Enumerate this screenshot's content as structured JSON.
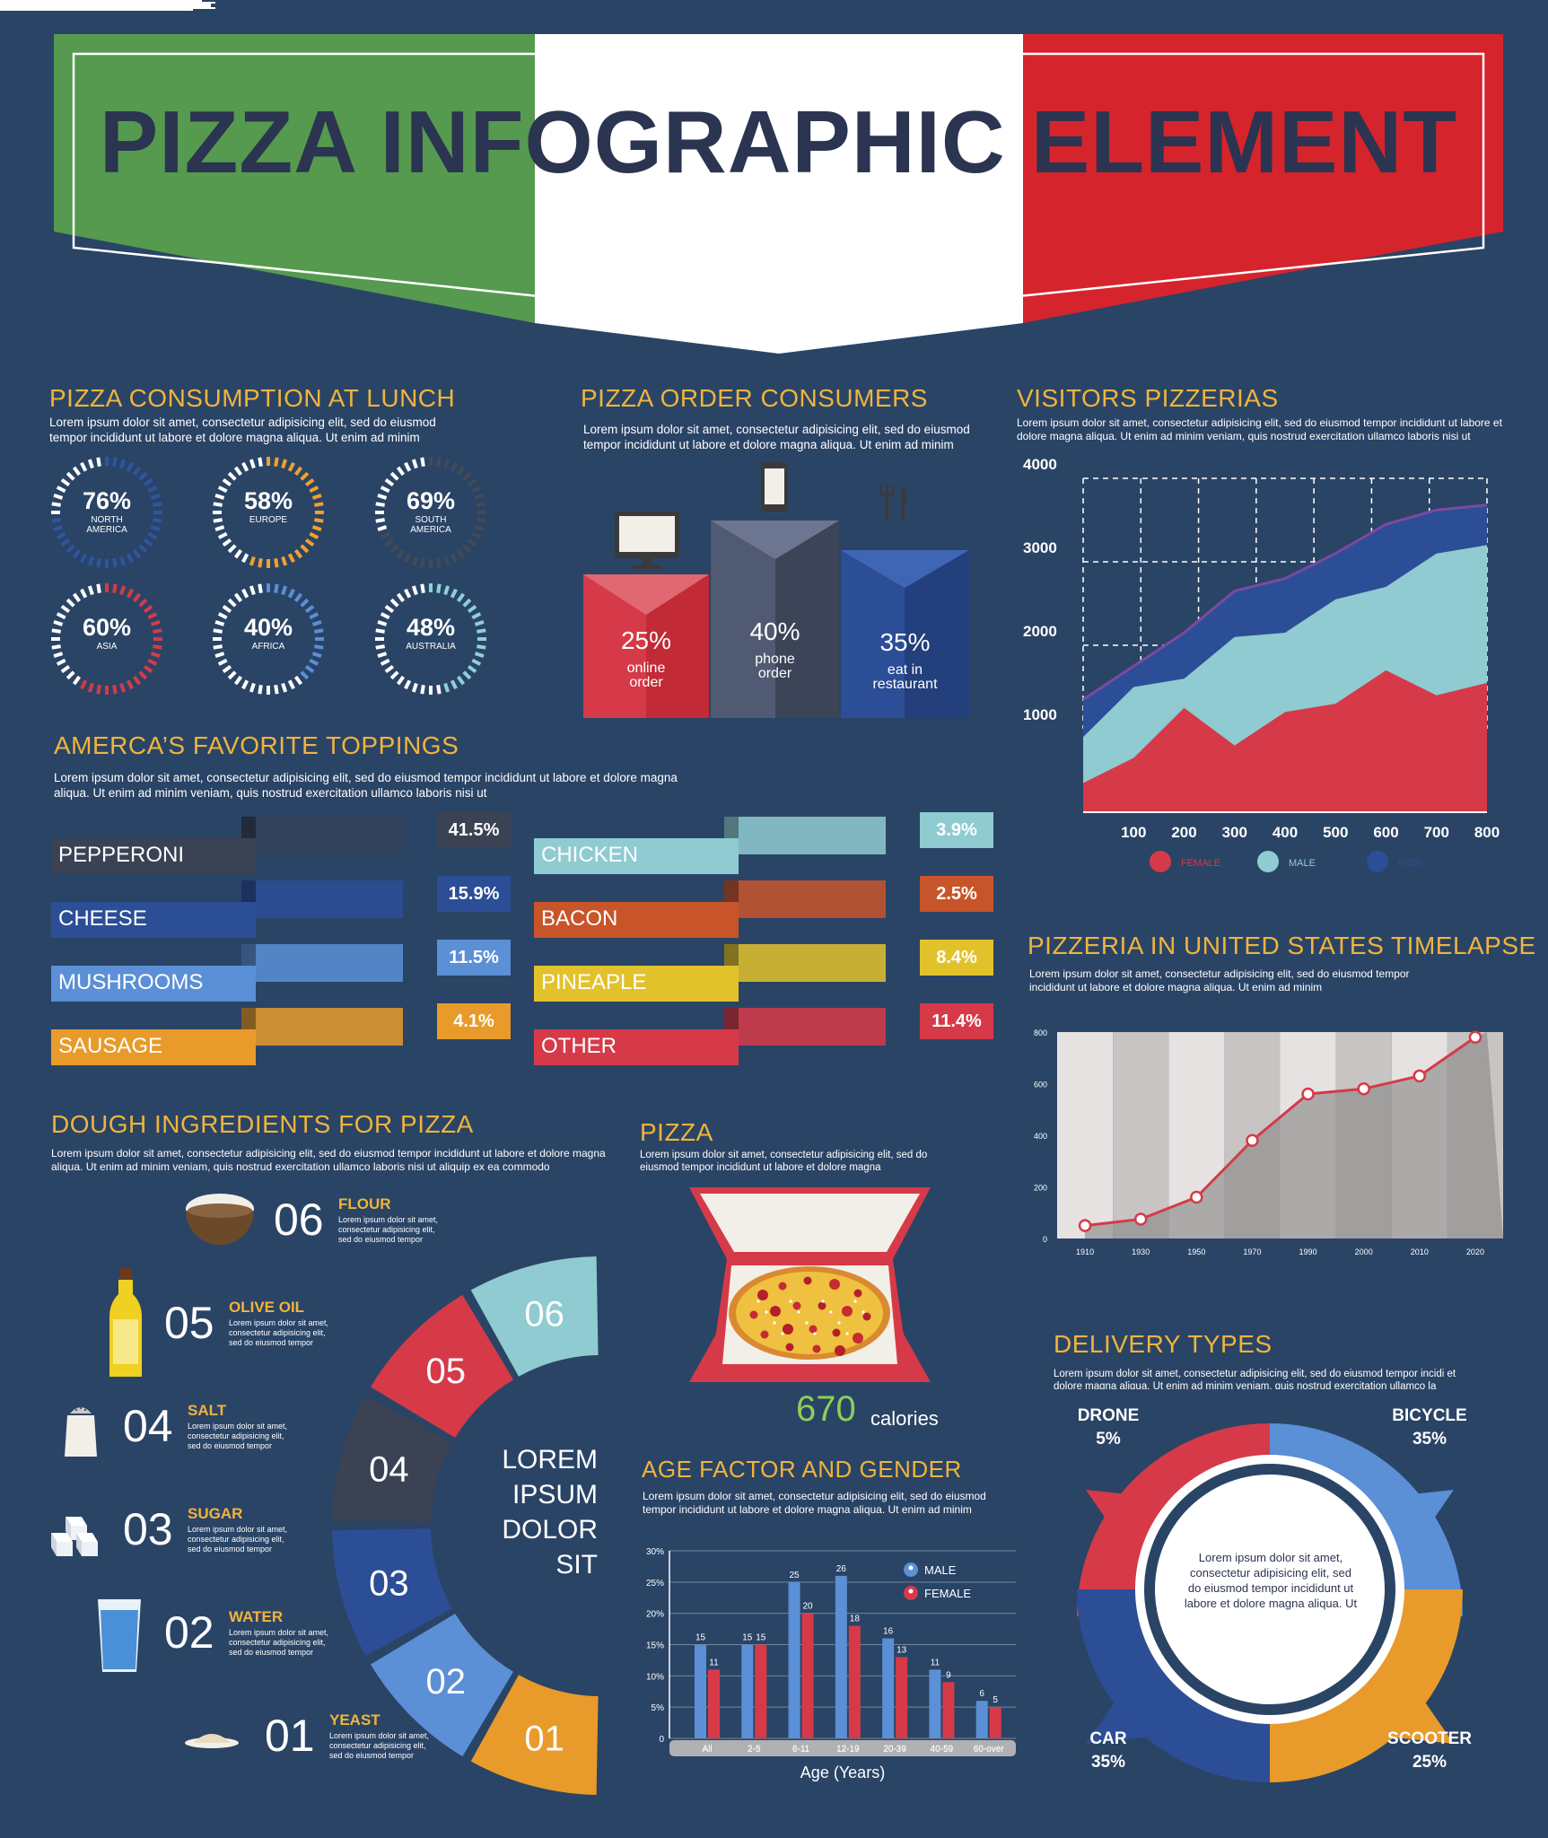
{
  "title": "PIZZA INFOGRAPHIC ELEMENT",
  "colors": {
    "background": "#2a4466",
    "green": "#559a4e",
    "white": "#ffffff",
    "red": "#d5242c",
    "accent": "#f0b43c",
    "title_text": "#2b3450"
  },
  "consumption": {
    "heading": "PIZZA CONSUMPTION AT LUNCH",
    "text": "Lorem ipsum dolor sit amet, consectetur adipisicing elit, sed do eiusmod tempor incididunt ut labore et dolore magna aliqua. Ut enim ad minim",
    "items": [
      {
        "pct": "76%",
        "region": "NORTH AMERICA",
        "color": "#2e55a0",
        "value": 76
      },
      {
        "pct": "58%",
        "region": "EUROPE",
        "color": "#f0a030",
        "value": 58
      },
      {
        "pct": "69%",
        "region": "SOUTH AMERICA",
        "color": "#444a55",
        "value": 69
      },
      {
        "pct": "60%",
        "region": "ASIA",
        "color": "#d63a48",
        "value": 60
      },
      {
        "pct": "40%",
        "region": "AFRICA",
        "color": "#5a8fd8",
        "value": 40
      },
      {
        "pct": "48%",
        "region": "AUSTRALIA",
        "color": "#8fd0d6",
        "value": 48
      }
    ]
  },
  "order": {
    "heading": "PIZZA ORDER CONSUMERS",
    "text": "Lorem ipsum dolor sit amet, consectetur adipisicing elit, sed do eiusmod tempor incididunt ut labore et dolore magna aliqua. Ut enim ad minim",
    "items": [
      {
        "pct": "25%",
        "label1": "online",
        "label2": "order",
        "icon": "monitor-icon",
        "value": 25
      },
      {
        "pct": "40%",
        "label1": "phone",
        "label2": "order",
        "icon": "phone-icon",
        "value": 40
      },
      {
        "pct": "35%",
        "label1": "eat in",
        "label2": "restaurant",
        "icon": "fork-knife-icon",
        "value": 35
      }
    ]
  },
  "visitors": {
    "heading": "VISITORS PIZZERIAS",
    "text": "Lorem ipsum dolor sit amet, consectetur adipisicing elit, sed do eiusmod tempor incididunt ut labore et dolore magna aliqua. Ut enim ad minim veniam, quis nostrud exercitation ullamco laboris nisi ut",
    "legend": [
      "FEMALE",
      "MALE",
      "KIDS"
    ]
  },
  "toppings": {
    "heading": "AMERCA’S FAVORITE TOPPINGS",
    "text": "Lorem ipsum dolor sit amet, consectetur adipisicing elit, sed do eiusmod tempor incididunt ut labore et dolore magna aliqua. Ut enim ad minim veniam, quis nostrud exercitation ullamco laboris nisi ut",
    "left": [
      {
        "name": "PEPPERONI",
        "pct": "41.5%",
        "color": "#3a4254",
        "value": 41.5
      },
      {
        "name": "CHEESE",
        "pct": "15.9%",
        "color": "#2c4e96",
        "value": 15.9
      },
      {
        "name": "MUSHROOMS",
        "pct": "11.5%",
        "color": "#5b8fd6",
        "value": 11.5
      },
      {
        "name": "SAUSAGE",
        "pct": "4.1%",
        "color": "#e89b2a",
        "value": 4.1
      }
    ],
    "right": [
      {
        "name": "CHICKEN",
        "pct": "3.9%",
        "color": "#8fcbd0",
        "value": 3.9
      },
      {
        "name": "BACON",
        "pct": "2.5%",
        "color": "#c8552a",
        "value": 2.5
      },
      {
        "name": "PINEAPLE",
        "pct": "8.4%",
        "color": "#e2c22a",
        "value": 8.4
      },
      {
        "name": "OTHER",
        "pct": "11.4%",
        "color": "#d63a48",
        "value": 11.4
      }
    ]
  },
  "timelapse": {
    "heading": "PIZZERIA IN UNITED STATES TIMELAPSE",
    "text": "Lorem ipsum dolor sit amet, consectetur adipisicing elit, sed do eiusmod tempor incididunt ut labore et dolore magna aliqua. Ut enim ad minim"
  },
  "dough": {
    "heading": "DOUGH INGREDIENTS FOR PIZZA",
    "text": "Lorem ipsum dolor sit amet, consectetur adipisicing elit, sed do eiusmod tempor incididunt ut labore et dolore magna aliqua. Ut enim ad minim veniam, quis nostrud exercitation ullamco laboris nisi ut aliquip ex ea commodo",
    "center_text": [
      "LOREM",
      "IPSUM",
      "DOLOR",
      "SIT"
    ],
    "steps": [
      {
        "num": "06",
        "title": "FLOUR",
        "desc": "Lorem ipsum dolor sit amet, consectetur adipisicing elit, sed do eiusmod tempor"
      },
      {
        "num": "05",
        "title": "OLIVE OIL",
        "desc": "Lorem ipsum dolor sit amet, consectetur adipisicing elit, sed do eiusmod tempor"
      },
      {
        "num": "04",
        "title": "SALT",
        "desc": "Lorem ipsum dolor sit amet, consectetur adipisicing elit, sed do eiusmod tempor"
      },
      {
        "num": "03",
        "title": "SUGAR",
        "desc": "Lorem ipsum dolor sit amet, consectetur adipisicing elit, sed do eiusmod tempor"
      },
      {
        "num": "02",
        "title": "WATER",
        "desc": "Lorem ipsum dolor sit amet, consectetur adipisicing elit, sed do eiusmod tempor"
      },
      {
        "num": "01",
        "title": "YEAST",
        "desc": "Lorem ipsum dolor sit amet, consectetur adipisicing elit, sed do eiusmod tempor"
      }
    ],
    "ring": [
      {
        "num": "01",
        "color": "#e89b2a"
      },
      {
        "num": "02",
        "color": "#5b8fd6"
      },
      {
        "num": "03",
        "color": "#2c4e96"
      },
      {
        "num": "04",
        "color": "#3a4254"
      },
      {
        "num": "05",
        "color": "#d63a48"
      },
      {
        "num": "06",
        "color": "#8fcbd0"
      }
    ]
  },
  "pizza": {
    "heading": "PIZZA",
    "text": "Lorem ipsum dolor sit amet, consectetur adipisicing elit, sed do eiusmod tempor incididunt ut labore et dolore magna",
    "calories_value": "670",
    "calories_label": "calories"
  },
  "age": {
    "heading": "AGE FACTOR AND GENDER",
    "text": "Lorem ipsum dolor sit amet, consectetur adipisicing elit, sed do eiusmod tempor incididunt ut labore et dolore magna aliqua. Ut enim ad minim"
  },
  "delivery": {
    "heading": "DELIVERY TYPES",
    "text": "Lorem ipsum dolor sit amet, consectetur adipisicing elit, sed do eiusmod tempor incidi et dolore magna aliqua. Ut enim ad minim veniam, quis nostrud exercitation ullamco la",
    "center_text": "Lorem ipsum dolor sit amet, consectetur adipisicing elit, sed do eiusmod tempor incididunt ut labore et dolore magna aliqua. Ut",
    "items": [
      {
        "name": "DRONE",
        "pct": "5%",
        "color": "#d63a48"
      },
      {
        "name": "BICYCLE",
        "pct": "35%",
        "color": "#5b8fd6"
      },
      {
        "name": "CAR",
        "pct": "35%",
        "color": "#2c4e96"
      },
      {
        "name": "SCOOTER",
        "pct": "25%",
        "color": "#e89b2a"
      }
    ]
  },
  "chart_data": [
    {
      "type": "area",
      "title": "VISITORS PIZZERIAS",
      "categories": [
        "",
        "100",
        "200",
        "300",
        "400",
        "500",
        "600",
        "700",
        "800"
      ],
      "yticks": [
        "1000",
        "2000",
        "3000",
        "4000"
      ],
      "ylim": [
        0,
        4000
      ],
      "series": [
        {
          "name": "FEMALE",
          "color": "#d63a48",
          "values": [
            350,
            650,
            1250,
            800,
            1200,
            1300,
            1700,
            1400,
            1550
          ]
        },
        {
          "name": "MALE",
          "color": "#8fcbd0",
          "values": [
            900,
            1500,
            1600,
            2100,
            2150,
            2550,
            2700,
            3100,
            3200
          ]
        },
        {
          "name": "KIDS",
          "color": "#2c4e96",
          "values": [
            1350,
            1750,
            2150,
            2650,
            2800,
            3100,
            3450,
            3620,
            3680
          ]
        }
      ]
    },
    {
      "type": "line",
      "title": "PIZZERIA IN UNITED STATES TIMELAPSE",
      "x": [
        "1910",
        "1930",
        "1950",
        "1970",
        "1990",
        "2000",
        "2010",
        "2020"
      ],
      "yticks": [
        "0",
        "200",
        "400",
        "600",
        "800"
      ],
      "ylim": [
        0,
        800
      ],
      "values": [
        50,
        75,
        160,
        380,
        560,
        580,
        630,
        780
      ]
    },
    {
      "type": "bar",
      "title": "AGE FACTOR AND GENDER",
      "xlabel": "Age (Years)",
      "categories": [
        "All",
        "2-5",
        "6-11",
        "12-19",
        "20-39",
        "40-59",
        "60-over"
      ],
      "yticks": [
        "0",
        "5%",
        "10%",
        "15%",
        "20%",
        "25%",
        "30%"
      ],
      "ylim": [
        0,
        30
      ],
      "series": [
        {
          "name": "MALE",
          "color": "#5b8fd6",
          "values": [
            15,
            15,
            25,
            26,
            16,
            11,
            6
          ]
        },
        {
          "name": "FEMALE",
          "color": "#d63a48",
          "values": [
            11,
            15,
            20,
            18,
            13,
            9,
            5
          ]
        }
      ]
    }
  ]
}
